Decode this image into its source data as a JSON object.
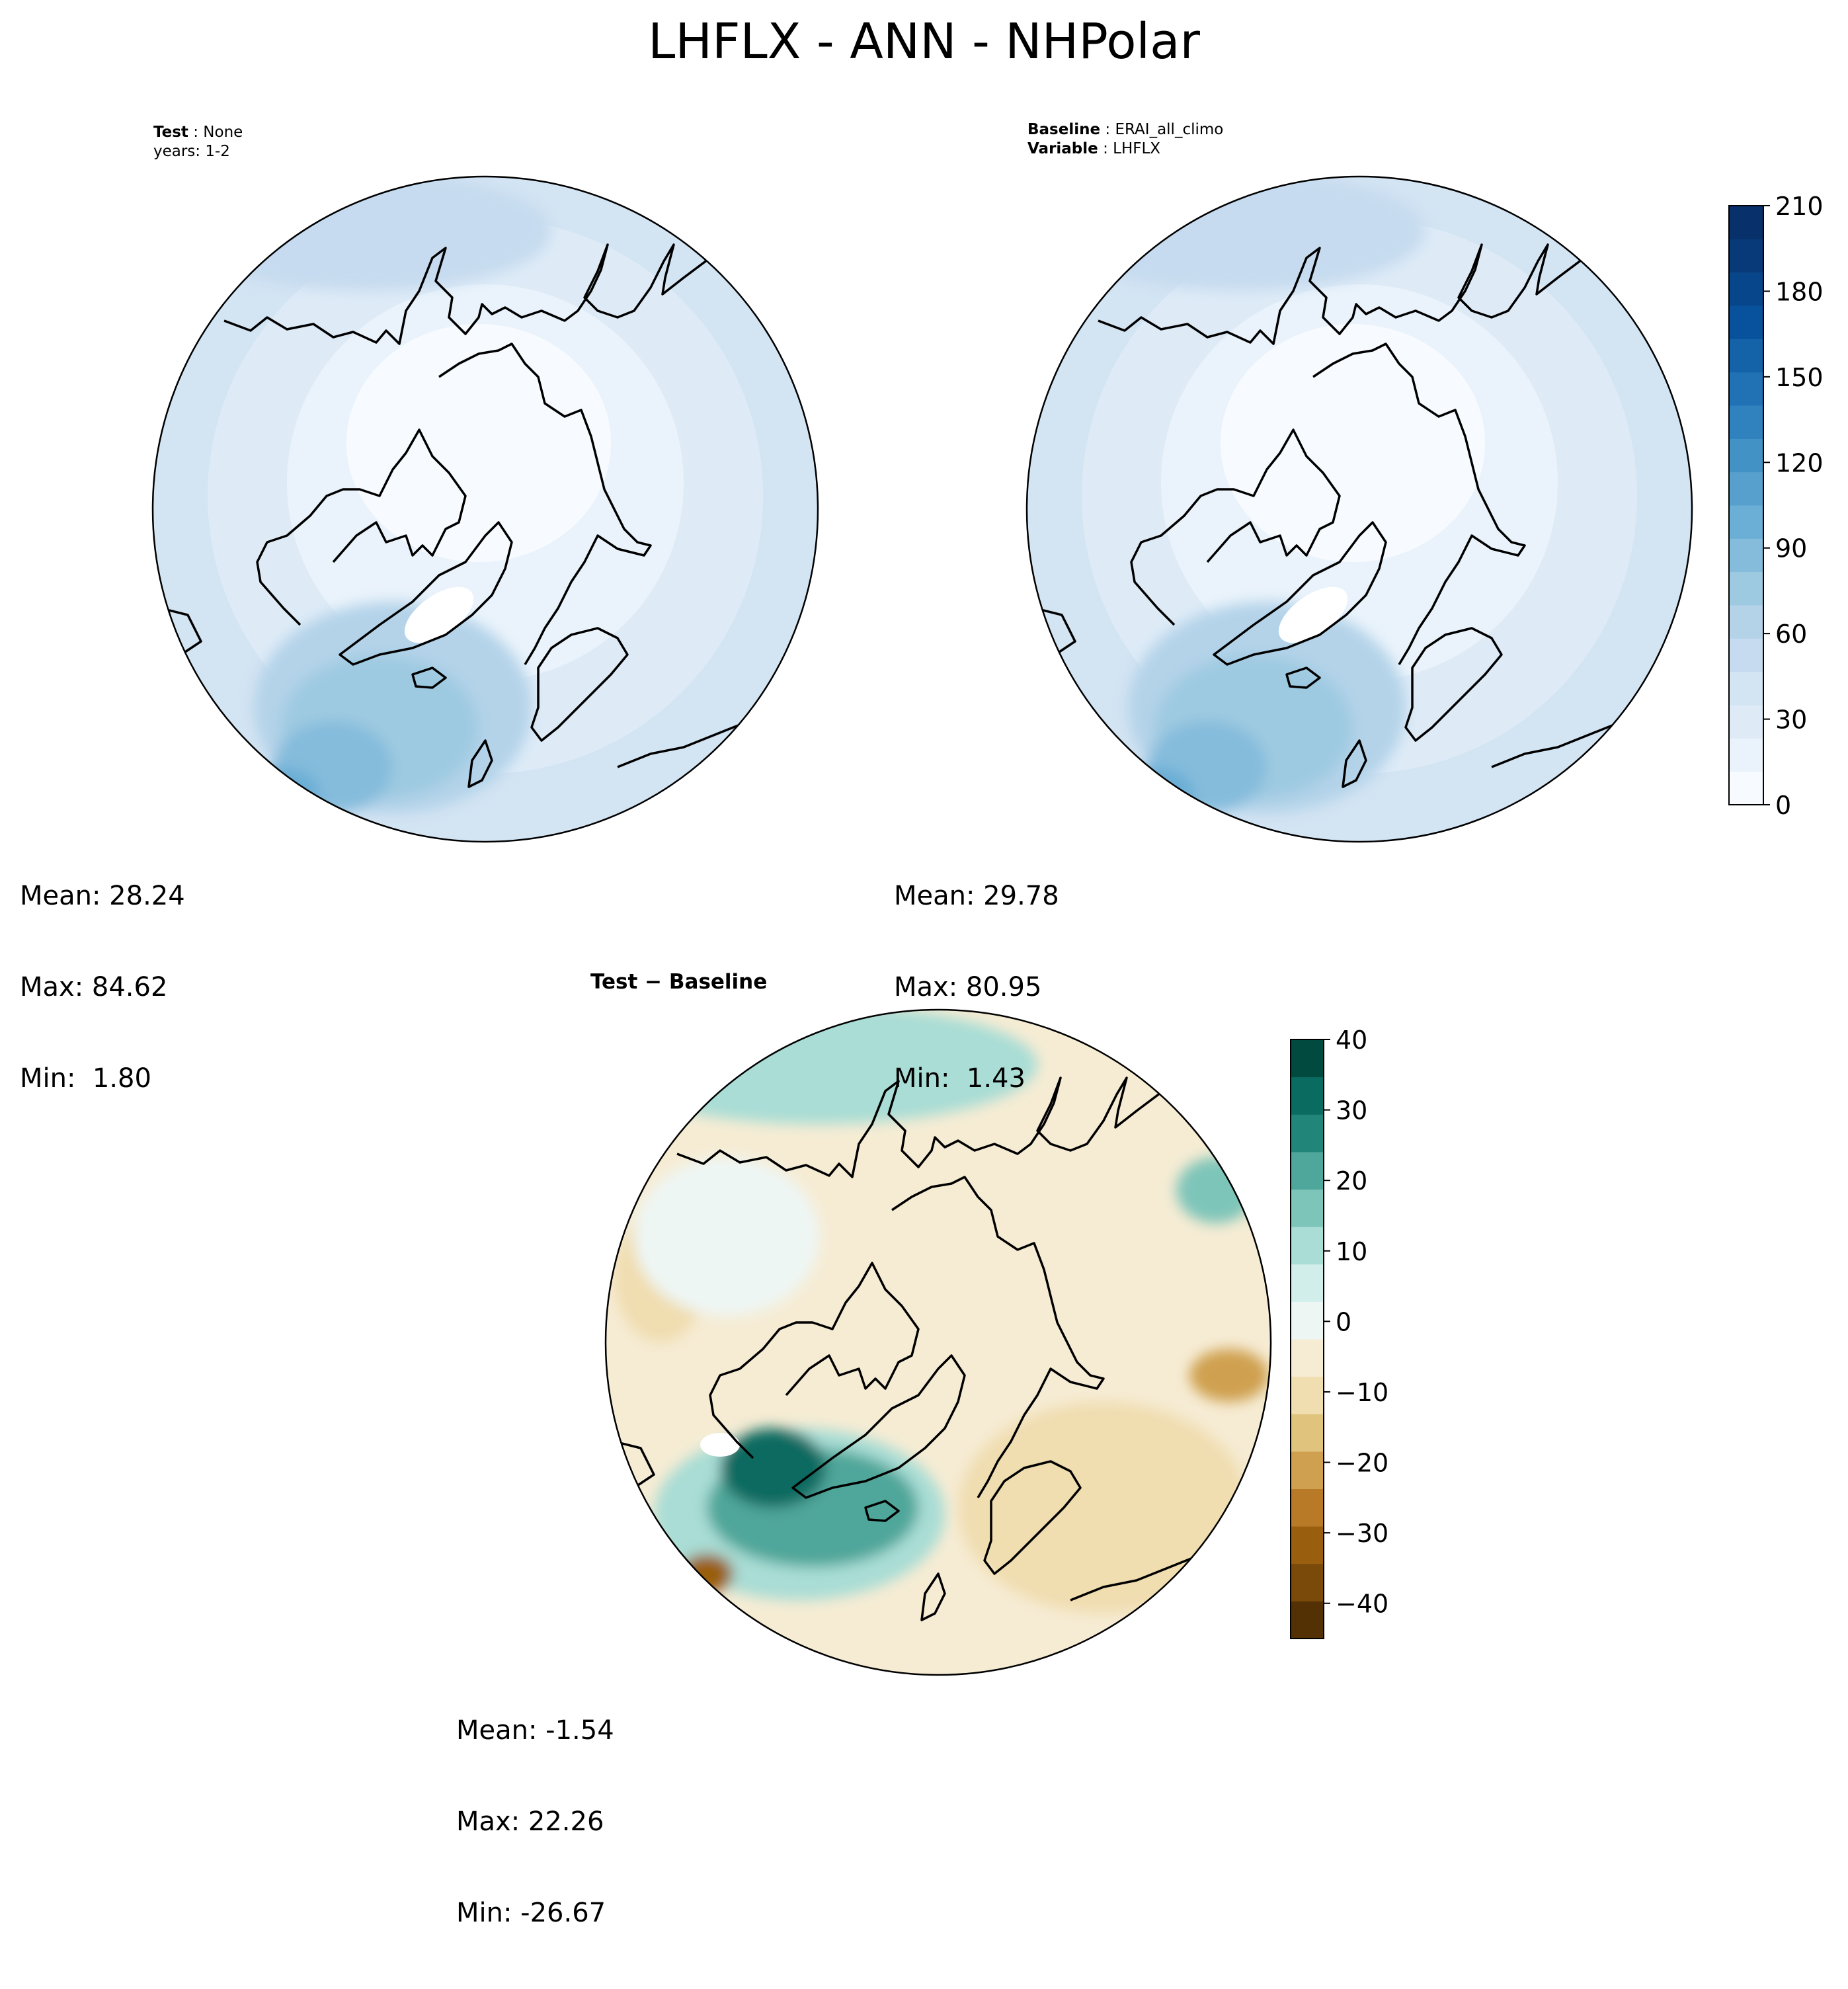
{
  "suptitle": "LHFLX - ANN - NHPolar",
  "test_panel": {
    "label_bold": "Test",
    "label_value": "None",
    "years": "years: 1-2",
    "stats": {
      "mean": "Mean: 28.24",
      "max": "Max: 84.62",
      "min": "Min:  1.80"
    }
  },
  "ref_panel": {
    "baseline_bold": "Baseline",
    "baseline_value": "ERAI_all_climo",
    "variable_bold": "Variable",
    "variable_value": "LHFLX",
    "stats": {
      "mean": "Mean: 29.78",
      "max": "Max: 80.95",
      "min": "Min:  1.43"
    }
  },
  "diff_panel": {
    "title_left": "Test",
    "title_op": " − ",
    "title_right": "Baseline",
    "stats": {
      "mean": "Mean: -1.54",
      "max": "Max: 22.26",
      "min": "Min: -26.67"
    }
  },
  "chart_data": [
    {
      "type": "heatmap",
      "projection": "north-polar-stereographic",
      "panel": "test",
      "colormap": "Blues",
      "colorbar_ticks": [
        "0",
        "30",
        "60",
        "90",
        "120",
        "150",
        "180",
        "210"
      ],
      "clim": [
        0,
        210
      ],
      "mean": 28.24,
      "max": 84.62,
      "min": 1.8
    },
    {
      "type": "heatmap",
      "projection": "north-polar-stereographic",
      "panel": "baseline",
      "colormap": "Blues",
      "colorbar_ticks": [
        "0",
        "30",
        "60",
        "90",
        "120",
        "150",
        "180",
        "210"
      ],
      "clim": [
        0,
        210
      ],
      "mean": 29.78,
      "max": 80.95,
      "min": 1.43
    },
    {
      "type": "heatmap",
      "projection": "north-polar-stereographic",
      "panel": "difference",
      "colormap": "BrBG",
      "colorbar_ticks": [
        "40",
        "30",
        "20",
        "10",
        "0",
        "−10",
        "−20",
        "−30",
        "−40"
      ],
      "clim": [
        -45,
        40
      ],
      "mean": -1.54,
      "max": 22.26,
      "min": -26.67
    }
  ],
  "colors": {
    "blues": [
      "#f7fbff",
      "#eaf3fb",
      "#deebf7",
      "#d3e4f3",
      "#c6dbef",
      "#b4d3e9",
      "#9ecae1",
      "#85bcdc",
      "#6baed6",
      "#57a0ce",
      "#4292c6",
      "#3082be",
      "#2171b5",
      "#1462a8",
      "#08519c",
      "#08468b",
      "#083979",
      "#08306b"
    ],
    "brbg": [
      "#543005",
      "#7a4a0a",
      "#9a5e0f",
      "#b87a27",
      "#cfa04f",
      "#e0c47d",
      "#f0ddb0",
      "#f6ecd4",
      "#eef6f4",
      "#d2eeea",
      "#a9ddd5",
      "#7ec5b9",
      "#4fa69a",
      "#22857a",
      "#0a6b60",
      "#014a3f"
    ],
    "greenland": "#ffffff",
    "coast": "#000000"
  }
}
